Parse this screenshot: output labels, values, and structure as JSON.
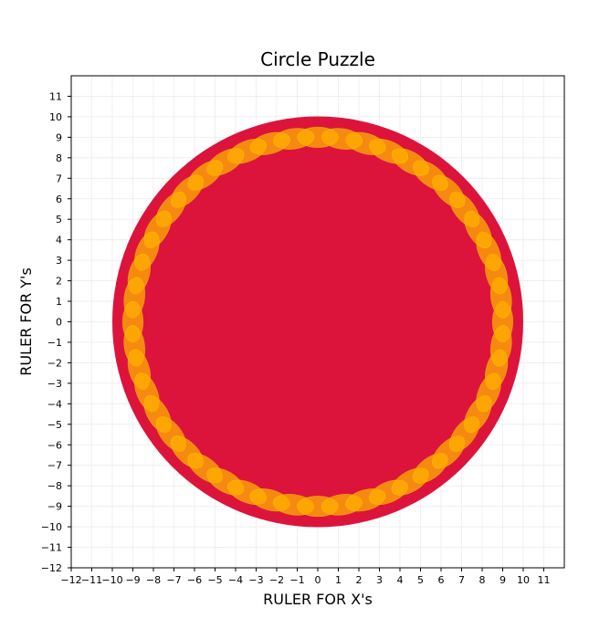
{
  "chart_data": {
    "type": "scatter",
    "title": "Circle Puzzle",
    "xlabel": "RULER FOR X's",
    "ylabel": "RULER FOR Y's",
    "xlim": [
      -12,
      12
    ],
    "ylim": [
      -12,
      12
    ],
    "x_ticks": [
      -12,
      -11,
      -10,
      -9,
      -8,
      -7,
      -6,
      -5,
      -4,
      -3,
      -2,
      -1,
      0,
      1,
      2,
      3,
      4,
      5,
      6,
      7,
      8,
      9,
      10,
      11
    ],
    "y_ticks": [
      -12,
      -11,
      -10,
      -9,
      -8,
      -7,
      -6,
      -5,
      -4,
      -3,
      -2,
      -1,
      0,
      1,
      2,
      3,
      4,
      5,
      6,
      7,
      8,
      9,
      10,
      11
    ],
    "grid": true,
    "shapes": {
      "big_circle": {
        "center": [
          0,
          0
        ],
        "radius": 10,
        "color": "#dc143c"
      },
      "ring": {
        "center": [
          0,
          0
        ],
        "path_radius": 9,
        "count": 48,
        "ellipse_width": 2,
        "ellipse_height": 1,
        "fill": "#ffb000",
        "fill_opacity": 0.75,
        "stroke": "#ffd000"
      }
    }
  }
}
